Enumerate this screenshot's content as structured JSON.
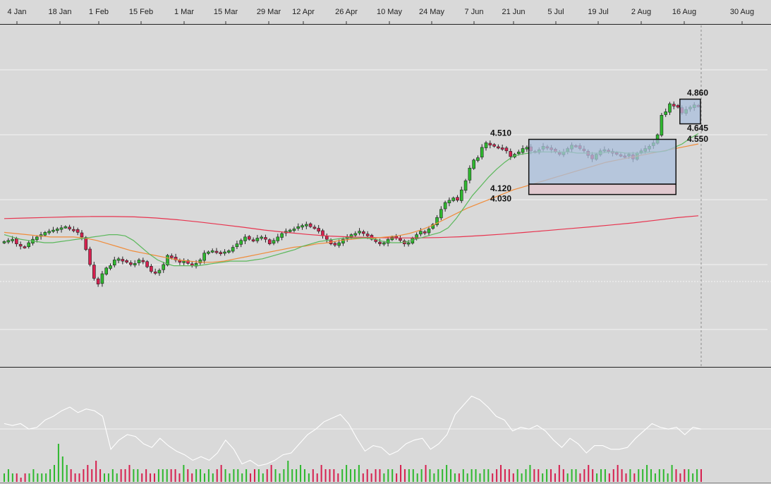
{
  "colors": {
    "background": "#d9d9d9",
    "gridline": "#f2f2f2",
    "axis_line": "#222222",
    "candle_up": "#2eb82e",
    "candle_down": "#d6204f",
    "ma_short": "#5cb85c",
    "ma_mid": "#f08c3a",
    "ma_long": "#e8344f",
    "oscillator": "#ffffff",
    "range_box_fill": "#a9bfdc",
    "range_box_low_fill": "#e2c6cc",
    "box_border": "#111111"
  },
  "chart_data": [
    {
      "type": "candlestick",
      "title": "",
      "x_axis_labels": [
        "4 Jan",
        "18 Jan",
        "1 Feb",
        "15 Feb",
        "1 Mar",
        "15 Mar",
        "29 Mar",
        "12 Apr",
        "26 Apr",
        "10 May",
        "24 May",
        "7 Jun",
        "21 Jun",
        "5 Jul",
        "19 Jul",
        "2 Aug",
        "16 Aug",
        "30 Aug"
      ],
      "grid": true,
      "ylim": [
        3.0,
        5.1
      ],
      "close_series": [
        3.62,
        3.63,
        3.64,
        3.6,
        3.58,
        3.57,
        3.61,
        3.64,
        3.66,
        3.68,
        3.7,
        3.71,
        3.72,
        3.73,
        3.74,
        3.75,
        3.73,
        3.72,
        3.7,
        3.66,
        3.55,
        3.42,
        3.3,
        3.25,
        3.34,
        3.39,
        3.41,
        3.46,
        3.47,
        3.45,
        3.44,
        3.42,
        3.43,
        3.46,
        3.45,
        3.4,
        3.36,
        3.35,
        3.37,
        3.42,
        3.5,
        3.48,
        3.46,
        3.44,
        3.45,
        3.43,
        3.41,
        3.43,
        3.46,
        3.52,
        3.53,
        3.54,
        3.53,
        3.52,
        3.53,
        3.54,
        3.57,
        3.6,
        3.63,
        3.66,
        3.64,
        3.63,
        3.65,
        3.66,
        3.64,
        3.6,
        3.63,
        3.66,
        3.69,
        3.71,
        3.72,
        3.73,
        3.75,
        3.76,
        3.77,
        3.75,
        3.74,
        3.71,
        3.67,
        3.64,
        3.6,
        3.59,
        3.61,
        3.64,
        3.66,
        3.68,
        3.69,
        3.71,
        3.69,
        3.67,
        3.64,
        3.62,
        3.6,
        3.61,
        3.64,
        3.66,
        3.65,
        3.63,
        3.6,
        3.61,
        3.65,
        3.68,
        3.71,
        3.7,
        3.73,
        3.77,
        3.83,
        3.9,
        3.96,
        3.98,
        4.0,
        3.98,
        4.07,
        4.15,
        4.26,
        4.33,
        4.35,
        4.44,
        4.48,
        4.46,
        4.45,
        4.44,
        4.43,
        4.41,
        4.36,
        4.38,
        4.4,
        4.43,
        4.44,
        4.41,
        4.4,
        4.42,
        4.45,
        4.44,
        4.42,
        4.4,
        4.38,
        4.4,
        4.43,
        4.46,
        4.45,
        4.43,
        4.41,
        4.37,
        4.34,
        4.38,
        4.41,
        4.42,
        4.41,
        4.39,
        4.38,
        4.37,
        4.36,
        4.38,
        4.34,
        4.39,
        4.41,
        4.43,
        4.45,
        4.48,
        4.55,
        4.72,
        4.75,
        4.82,
        4.8,
        4.79,
        4.74,
        4.77,
        4.79,
        4.81,
        4.8
      ],
      "ma_short": [
        3.68,
        3.66,
        3.64,
        3.63,
        3.62,
        3.61,
        3.61,
        3.62,
        3.63,
        3.64,
        3.65,
        3.66,
        3.67,
        3.68,
        3.68,
        3.67,
        3.63,
        3.57,
        3.51,
        3.46,
        3.43,
        3.41,
        3.41,
        3.41,
        3.41,
        3.42,
        3.43,
        3.44,
        3.45,
        3.45,
        3.45,
        3.46,
        3.47,
        3.49,
        3.51,
        3.53,
        3.55,
        3.58,
        3.6,
        3.62,
        3.63,
        3.64,
        3.65,
        3.65,
        3.65,
        3.65,
        3.64,
        3.62,
        3.61,
        3.61,
        3.62,
        3.64,
        3.66,
        3.68,
        3.7,
        3.74,
        3.82,
        3.92,
        4.02,
        4.1,
        4.18,
        4.25,
        4.31,
        4.36,
        4.38,
        4.39,
        4.4,
        4.4,
        4.4,
        4.4,
        4.4,
        4.39,
        4.39,
        4.39,
        4.39,
        4.4,
        4.4,
        4.39,
        4.39,
        4.39,
        4.4,
        4.4,
        4.41,
        4.44,
        4.47,
        4.52,
        4.56
      ],
      "ma_mid": [
        3.7,
        3.69,
        3.68,
        3.67,
        3.66,
        3.66,
        3.66,
        3.65,
        3.63,
        3.6,
        3.57,
        3.54,
        3.52,
        3.5,
        3.48,
        3.46,
        3.45,
        3.44,
        3.44,
        3.45,
        3.47,
        3.49,
        3.51,
        3.53,
        3.55,
        3.57,
        3.58,
        3.6,
        3.61,
        3.63,
        3.64,
        3.65,
        3.65,
        3.66,
        3.67,
        3.69,
        3.72,
        3.76,
        3.81,
        3.86,
        3.91,
        3.95,
        3.99,
        4.03,
        4.07,
        4.1,
        4.13,
        4.16,
        4.19,
        4.22,
        4.25,
        4.28,
        4.31,
        4.33,
        4.35,
        4.37,
        4.39,
        4.41,
        4.43,
        4.45,
        4.47
      ],
      "ma_long": [
        3.82,
        3.825,
        3.83,
        3.835,
        3.838,
        3.838,
        3.835,
        3.825,
        3.81,
        3.79,
        3.768,
        3.745,
        3.72,
        3.7,
        3.682,
        3.668,
        3.66,
        3.655,
        3.652,
        3.652,
        3.655,
        3.662,
        3.672,
        3.685,
        3.7,
        3.716,
        3.732,
        3.748,
        3.765,
        3.783,
        3.805,
        3.828,
        3.845
      ],
      "oscillator_series": [
        52,
        50,
        52,
        46,
        48,
        56,
        60,
        66,
        70,
        64,
        68,
        66,
        60,
        24,
        34,
        40,
        38,
        30,
        26,
        36,
        28,
        22,
        18,
        12,
        16,
        12,
        20,
        34,
        24,
        8,
        12,
        6,
        8,
        12,
        18,
        20,
        30,
        40,
        46,
        54,
        58,
        62,
        52,
        36,
        22,
        28,
        26,
        18,
        22,
        30,
        34,
        36,
        24,
        30,
        40,
        62,
        72,
        82,
        78,
        70,
        60,
        56,
        44,
        48,
        46,
        50,
        44,
        34,
        26,
        36,
        30,
        20,
        28,
        28,
        24,
        24,
        26,
        36,
        44,
        52,
        48,
        46,
        48,
        40,
        48,
        46
      ],
      "volume_series": [
        2,
        3,
        2,
        2,
        1,
        2,
        2,
        3,
        2,
        2,
        2,
        3,
        4,
        9,
        6,
        4,
        3,
        2,
        2,
        3,
        4,
        3,
        5,
        3,
        2,
        2,
        3,
        2,
        3,
        3,
        4,
        3,
        3,
        2,
        3,
        2,
        2,
        3,
        3,
        3,
        3,
        3,
        2,
        4,
        3,
        2,
        3,
        3,
        2,
        3,
        2,
        3,
        4,
        3,
        2,
        3,
        3,
        2,
        3,
        2,
        3,
        3,
        2,
        3,
        4,
        3,
        2,
        3,
        5,
        3,
        3,
        4,
        3,
        2,
        3,
        2,
        4,
        3,
        3,
        3,
        2,
        3,
        4,
        3,
        3,
        4,
        2,
        3,
        2,
        3,
        3,
        2,
        3,
        3,
        2,
        4,
        3,
        3,
        3,
        2,
        3,
        4,
        3,
        2,
        3,
        3,
        4,
        3,
        2,
        2,
        3,
        2,
        3,
        3,
        2,
        3,
        3,
        2,
        3,
        4,
        3,
        3,
        2,
        3,
        2,
        3,
        4,
        3,
        3,
        2,
        3,
        3,
        2,
        4,
        3,
        2,
        3,
        3,
        2,
        3,
        4,
        3,
        2,
        3,
        3,
        2,
        3,
        4,
        3,
        2,
        3,
        2,
        3,
        3,
        4,
        3,
        2,
        3,
        3,
        2,
        4,
        3,
        2,
        3,
        3,
        2,
        3,
        3
      ],
      "annotations": [
        "4.860",
        "4.645",
        "4.550",
        "4.510",
        "4.120",
        "4.030"
      ],
      "range_boxes": [
        {
          "top_value": 4.51,
          "mid_value": 4.12,
          "bottom_value": 4.03,
          "start_index": 129,
          "end_index": 164
        },
        {
          "top_value": 4.86,
          "mid_value": 4.645,
          "bottom_value": 4.645,
          "start_index": 166,
          "end_index": 170
        }
      ]
    }
  ]
}
